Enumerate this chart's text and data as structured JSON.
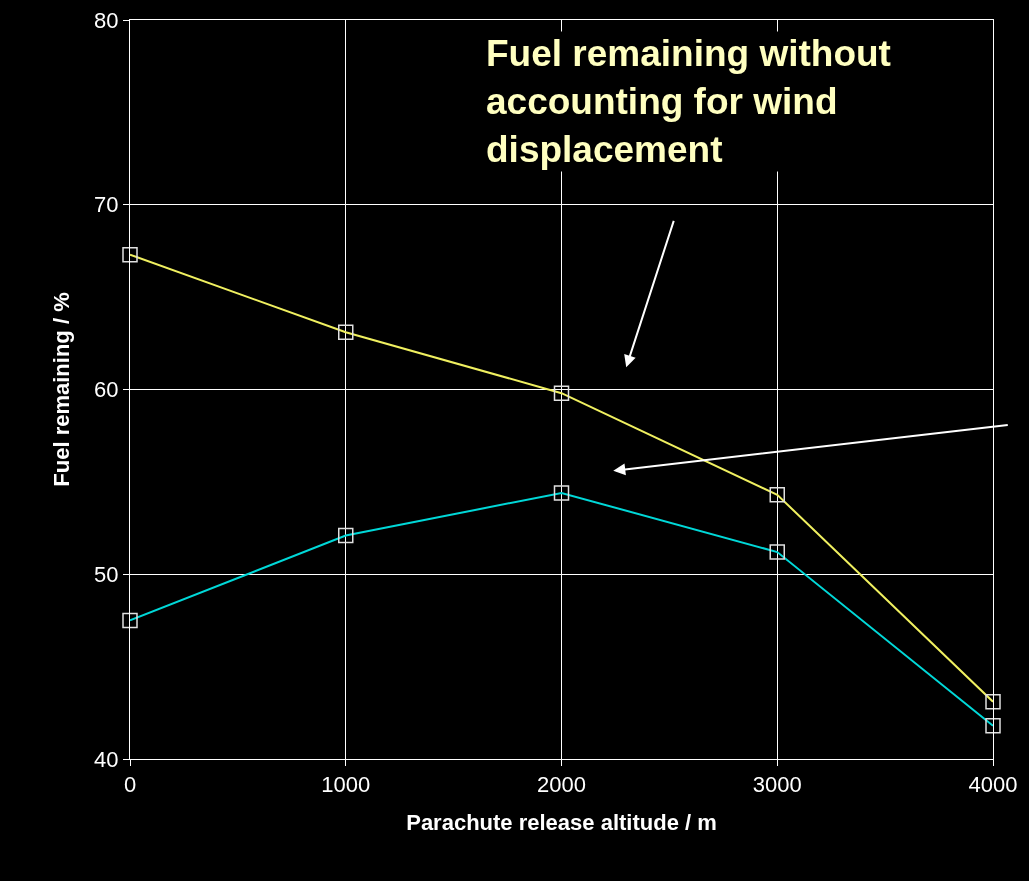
{
  "chart_data": {
    "type": "line",
    "xlabel": "Parachute release altitude / m",
    "ylabel": "Fuel remaining / %",
    "x": [
      0,
      1000,
      2000,
      3000,
      4000
    ],
    "series": [
      {
        "name": null,
        "color": "#f0f060",
        "values": [
          67.3,
          63.1,
          59.8,
          54.3,
          43.1
        ]
      },
      {
        "name": null,
        "color": "#00d8d8",
        "values": [
          47.5,
          52.1,
          54.4,
          51.2,
          41.8
        ]
      }
    ],
    "xlim": [
      0,
      4000
    ],
    "xticks": [
      0,
      1000,
      2000,
      3000,
      4000
    ],
    "ylim": [
      40,
      80
    ],
    "yticks": [
      40,
      50,
      60,
      70,
      80
    ],
    "grid": true,
    "marker": "square",
    "line_style": "solid",
    "annotations": [
      "Fuel remaining without\naccounting for wind\ndisplacement"
    ]
  }
}
